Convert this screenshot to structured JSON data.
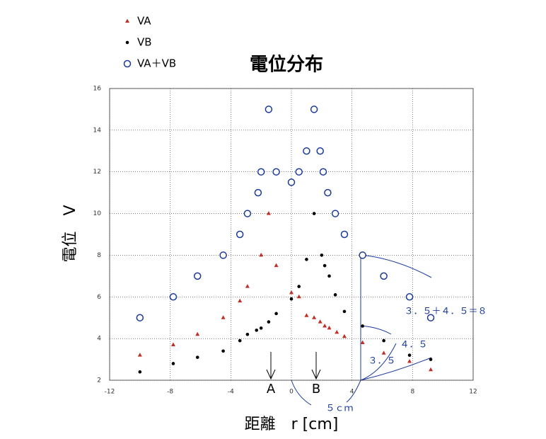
{
  "chart_data": {
    "type": "scatter",
    "title": "電位分布",
    "x_label": "距離　r [cm]",
    "y_label": "電位　V",
    "xlim": [
      -12,
      12
    ],
    "ylim": [
      2,
      16
    ],
    "xticks": [
      -12,
      -8,
      -4,
      0,
      4,
      8,
      12
    ],
    "yticks": [
      2,
      4,
      6,
      8,
      10,
      12,
      14,
      16
    ],
    "grid": true,
    "series": [
      {
        "name": "VA",
        "color": "#c0302a",
        "marker": "triangle",
        "x": [
          -10,
          -7.8,
          -6.2,
          -4.5,
          -3.4,
          -2.9,
          -2.0,
          -1.5,
          -1.0,
          0,
          0.5,
          1.0,
          1.5,
          1.9,
          2.2,
          2.5,
          3.0,
          3.5,
          4.7,
          6.1,
          7.8,
          9.2
        ],
        "values": [
          3.2,
          3.7,
          4.2,
          5.0,
          5.8,
          6.5,
          8.0,
          10.0,
          7.5,
          6.2,
          6.0,
          5.1,
          5.0,
          4.8,
          4.6,
          4.5,
          4.3,
          4.1,
          3.8,
          3.3,
          2.9,
          2.5
        ]
      },
      {
        "name": "VB",
        "color": "#000000",
        "marker": "dot",
        "x": [
          -10,
          -7.8,
          -6.2,
          -4.5,
          -3.4,
          -2.9,
          -2.3,
          -2.0,
          -1.5,
          -1.0,
          0,
          0.5,
          1.0,
          1.5,
          2.0,
          2.2,
          2.5,
          2.9,
          3.5,
          4.7,
          6.1,
          7.8,
          9.2
        ],
        "values": [
          2.4,
          2.8,
          3.1,
          3.4,
          3.9,
          4.2,
          4.4,
          4.5,
          4.8,
          5.2,
          5.9,
          6.5,
          7.8,
          10.0,
          8.0,
          7.5,
          7.0,
          6.1,
          5.3,
          4.6,
          3.9,
          3.2,
          3.0
        ]
      },
      {
        "name": "VA＋VB",
        "color": "#1a3a9a",
        "marker": "circle",
        "x": [
          -10,
          -7.8,
          -6.2,
          -4.5,
          -3.4,
          -2.9,
          -2.2,
          -2.0,
          -1.5,
          -1.0,
          0,
          0.5,
          1.0,
          1.5,
          1.9,
          2.1,
          2.4,
          2.9,
          3.5,
          4.7,
          6.1,
          7.8,
          9.2
        ],
        "values": [
          5,
          6,
          7,
          8,
          9,
          10,
          11,
          12,
          15,
          12,
          11.5,
          12,
          13,
          15,
          13,
          12,
          11,
          10,
          9,
          8,
          7,
          6,
          5
        ]
      }
    ],
    "annotations": [
      "A",
      "B",
      "５ｃｍ",
      "３．５",
      "４．５",
      "３．５＋４．５＝８"
    ]
  }
}
